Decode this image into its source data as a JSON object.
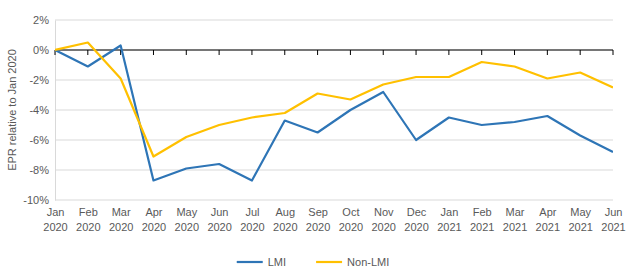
{
  "chart_data": {
    "type": "line",
    "y_label": "EPR relative to Jan 2020",
    "categories": [
      "Jan 2020",
      "Feb 2020",
      "Mar 2020",
      "Apr 2020",
      "May 2020",
      "Jun 2020",
      "Jul 2020",
      "Aug 2020",
      "Sep 2020",
      "Oct 2020",
      "Nov 2020",
      "Dec 2020",
      "Jan 2021",
      "Feb 2021",
      "Mar 2021",
      "Apr 2021",
      "May 2021",
      "Jun 2021"
    ],
    "series": [
      {
        "name": "LMI",
        "color": "#2e75b6",
        "values": [
          0,
          -1.1,
          0.3,
          -8.7,
          -7.9,
          -7.6,
          -8.7,
          -4.7,
          -5.5,
          -4.0,
          -2.8,
          -6.0,
          -4.5,
          -5.0,
          -4.8,
          -4.4,
          -5.7,
          -6.8
        ]
      },
      {
        "name": "Non-LMI",
        "color": "#ffc000",
        "values": [
          0,
          0.5,
          -1.9,
          -7.1,
          -5.8,
          -5.0,
          -4.5,
          -4.2,
          -2.9,
          -3.3,
          -2.3,
          -1.8,
          -1.8,
          -0.8,
          -1.1,
          -1.9,
          -1.5,
          -2.5
        ]
      }
    ],
    "ylim": [
      -10,
      2
    ],
    "yticks": [
      {
        "value": 2,
        "label": "2%"
      },
      {
        "value": 0,
        "label": "0%"
      },
      {
        "value": -2,
        "label": "-2%"
      },
      {
        "value": -4,
        "label": "-4%"
      },
      {
        "value": -6,
        "label": "-6%"
      },
      {
        "value": -8,
        "label": "-8%"
      },
      {
        "value": -10,
        "label": "-10%"
      }
    ],
    "grid": true,
    "legend": "bottom"
  }
}
